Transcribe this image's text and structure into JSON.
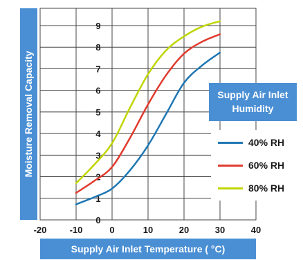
{
  "chart_data": {
    "type": "line",
    "title": "",
    "xlabel": "Supply Air Inlet Temperature ( °C)",
    "ylabel": "Moisture Removal Capacity",
    "xlim": [
      -20,
      40
    ],
    "ylim": [
      0,
      9.8
    ],
    "xticks": [
      -20,
      -10,
      0,
      10,
      20,
      30,
      40
    ],
    "yticks": [
      0,
      1,
      2,
      3,
      4,
      5,
      6,
      7,
      8,
      9
    ],
    "grid": true,
    "legend": {
      "title": "Supply Air Inlet Humidity",
      "placement": "right"
    },
    "series": [
      {
        "name": "40% RH",
        "color": "#1f77b4",
        "x": [
          -10,
          -5,
          0,
          5,
          10,
          15,
          20,
          25,
          30
        ],
        "y": [
          0.72,
          1.05,
          1.45,
          2.3,
          3.45,
          4.9,
          6.35,
          7.15,
          7.75
        ]
      },
      {
        "name": "60% RH",
        "color": "#e03a2c",
        "x": [
          -10,
          -5,
          0,
          5,
          10,
          15,
          20,
          25,
          30
        ],
        "y": [
          1.25,
          1.8,
          2.45,
          3.8,
          5.35,
          6.7,
          7.7,
          8.25,
          8.6
        ]
      },
      {
        "name": "80% RH",
        "color": "#bfd500",
        "x": [
          -10,
          -5,
          0,
          5,
          10,
          15,
          20,
          25,
          30
        ],
        "y": [
          1.7,
          2.55,
          3.55,
          5.2,
          6.75,
          7.85,
          8.5,
          8.95,
          9.2
        ]
      }
    ]
  }
}
